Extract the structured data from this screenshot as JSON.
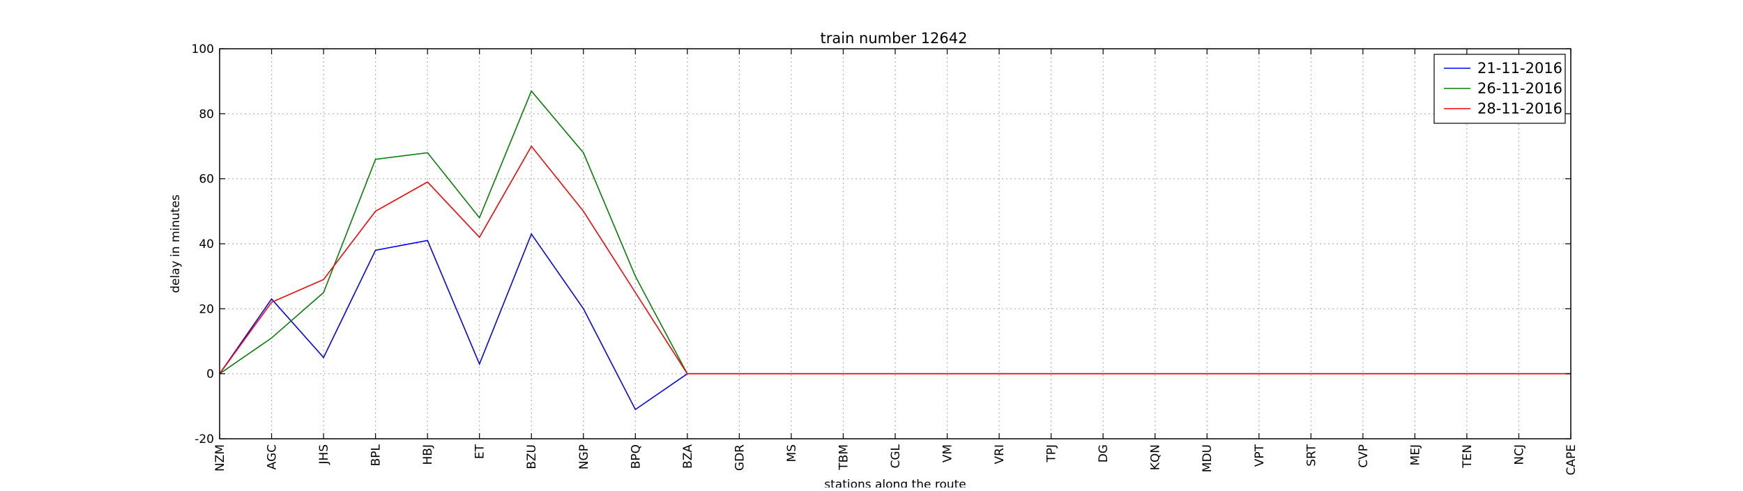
{
  "chart_data": {
    "type": "line",
    "title": "train number 12642",
    "xlabel": "stations along the route",
    "ylabel": "delay in minutes",
    "ylim": [
      -20,
      100
    ],
    "yticks": [
      -20,
      0,
      20,
      40,
      60,
      80,
      100
    ],
    "grid": true,
    "legend_position": "top-right",
    "categories": [
      "NZM",
      "AGC",
      "JHS",
      "BPL",
      "HBJ",
      "ET",
      "BZU",
      "NGP",
      "BPQ",
      "BZA",
      "GDR",
      "MS",
      "TBM",
      "CGL",
      "VM",
      "VRI",
      "TPJ",
      "DG",
      "KQN",
      "MDU",
      "VPT",
      "SRT",
      "CVP",
      "MEJ",
      "TEN",
      "NCJ",
      "CAPE"
    ],
    "series": [
      {
        "name": "21-11-2016",
        "color": "#0000ff",
        "values": [
          0,
          23,
          5,
          38,
          41,
          3,
          43,
          20,
          -11,
          0,
          0,
          0,
          0,
          0,
          0,
          0,
          0,
          0,
          0,
          0,
          0,
          0,
          0,
          0,
          0,
          0,
          0
        ]
      },
      {
        "name": "26-11-2016",
        "color": "#008000",
        "values": [
          0,
          11,
          25,
          66,
          68,
          48,
          87,
          68,
          30,
          0,
          0,
          0,
          0,
          0,
          0,
          0,
          0,
          0,
          0,
          0,
          0,
          0,
          0,
          0,
          0,
          0,
          0
        ]
      },
      {
        "name": "28-11-2016",
        "color": "#ff0000",
        "values": [
          0,
          22,
          29,
          50,
          59,
          42,
          70,
          50,
          25,
          0,
          0,
          0,
          0,
          0,
          0,
          0,
          0,
          0,
          0,
          0,
          0,
          0,
          0,
          0,
          0,
          0,
          0
        ]
      }
    ]
  }
}
